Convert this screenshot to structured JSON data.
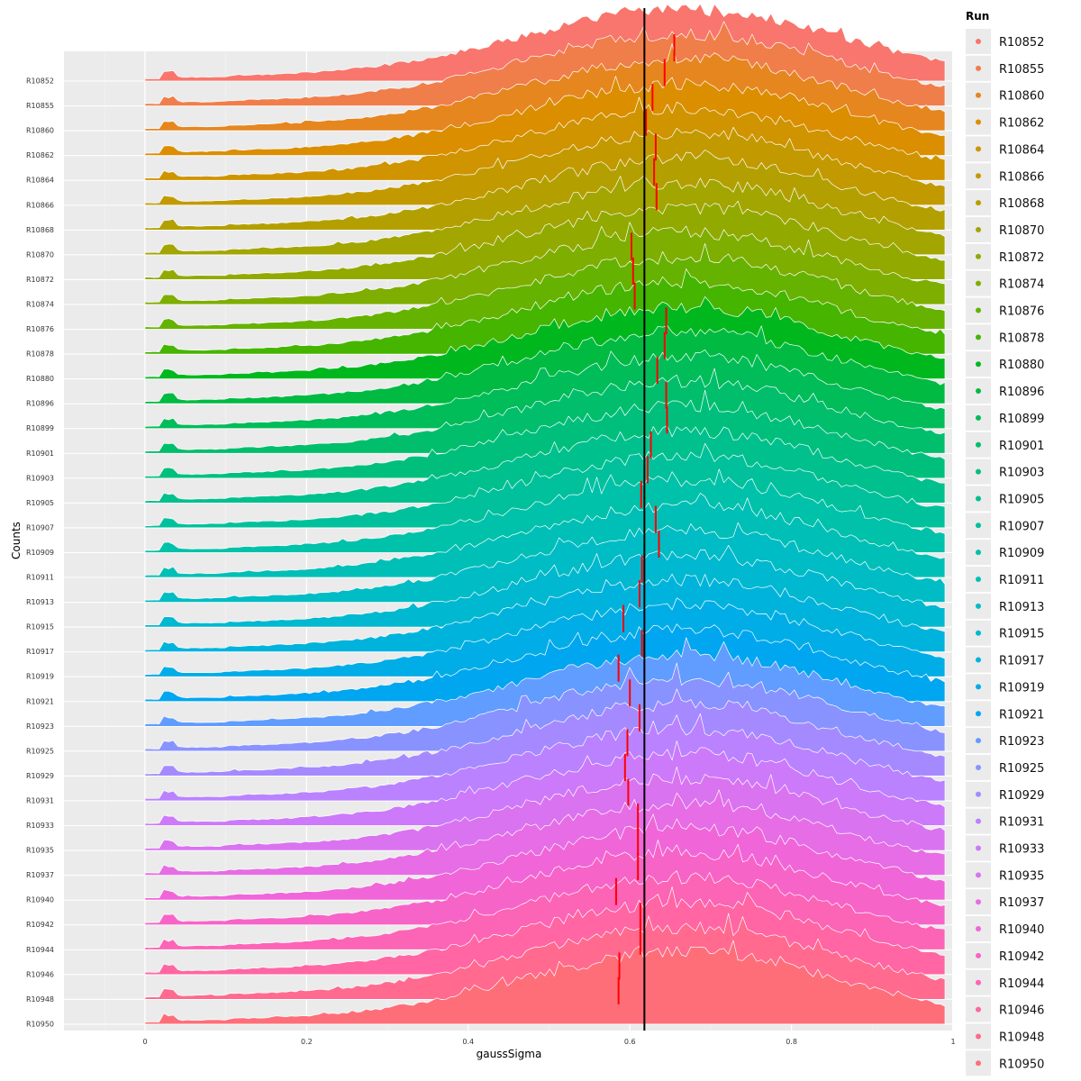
{
  "chart_data": {
    "type": "area",
    "subtype": "ridgeline",
    "title": "",
    "xlabel": "gaussSigma",
    "ylabel": "Counts",
    "xlim": [
      -0.1,
      1.0
    ],
    "x_ticks": [
      "0",
      "0.2",
      "0.4",
      "0.6",
      "0.8",
      "1"
    ],
    "x_tick_values": [
      0,
      0.2,
      0.4,
      0.6,
      0.8,
      1.0
    ],
    "grid": true,
    "reference_line": {
      "x": 0.618,
      "color": "#000000"
    },
    "median_marker_color": "#ff0000",
    "distribution": {
      "x_start": 0.0,
      "x_end": 0.99,
      "mode": 0.67,
      "outlier_spike_x": 0.03
    },
    "legend": {
      "title": "Run",
      "placement": "right"
    },
    "series": [
      {
        "name": "R10852",
        "color": "#F8766D",
        "median": 0.655
      },
      {
        "name": "R10855",
        "color": "#F07E4B",
        "median": 0.643
      },
      {
        "name": "R10860",
        "color": "#E6861F",
        "median": 0.628
      },
      {
        "name": "R10862",
        "color": "#DB8E00",
        "median": 0.62
      },
      {
        "name": "R10864",
        "color": "#CF9400",
        "median": 0.632
      },
      {
        "name": "R10866",
        "color": "#C29A00",
        "median": 0.63
      },
      {
        "name": "R10868",
        "color": "#B3A000",
        "median": 0.633
      },
      {
        "name": "R10870",
        "color": "#A3A500",
        "median": 0.618
      },
      {
        "name": "R10872",
        "color": "#92AA00",
        "median": 0.602
      },
      {
        "name": "R10874",
        "color": "#7EAE00",
        "median": 0.604
      },
      {
        "name": "R10876",
        "color": "#66B200",
        "median": 0.606
      },
      {
        "name": "R10878",
        "color": "#45B500",
        "median": 0.645
      },
      {
        "name": "R10880",
        "color": "#00B81E",
        "median": 0.643
      },
      {
        "name": "R10896",
        "color": "#00BA42",
        "median": 0.634
      },
      {
        "name": "R10899",
        "color": "#00BC59",
        "median": 0.645
      },
      {
        "name": "R10901",
        "color": "#00BE6C",
        "median": 0.646
      },
      {
        "name": "R10903",
        "color": "#00BF7D",
        "median": 0.626
      },
      {
        "name": "R10905",
        "color": "#00C08D",
        "median": 0.622
      },
      {
        "name": "R10907",
        "color": "#00C19B",
        "median": 0.614
      },
      {
        "name": "R10909",
        "color": "#00C1A9",
        "median": 0.632
      },
      {
        "name": "R10911",
        "color": "#00BFB7",
        "median": 0.636
      },
      {
        "name": "R10913",
        "color": "#00BCC4",
        "median": 0.615
      },
      {
        "name": "R10915",
        "color": "#00B8D0",
        "median": 0.612
      },
      {
        "name": "R10917",
        "color": "#00B3DC",
        "median": 0.592
      },
      {
        "name": "R10919",
        "color": "#00ADE7",
        "median": 0.615
      },
      {
        "name": "R10921",
        "color": "#00A6F0",
        "median": 0.586
      },
      {
        "name": "R10923",
        "color": "#619CFF",
        "median": 0.6
      },
      {
        "name": "R10925",
        "color": "#8993FF",
        "median": 0.612
      },
      {
        "name": "R10929",
        "color": "#A58AFF",
        "median": 0.597
      },
      {
        "name": "R10931",
        "color": "#BA82FF",
        "median": 0.594
      },
      {
        "name": "R10933",
        "color": "#CC7AF9",
        "median": 0.598
      },
      {
        "name": "R10935",
        "color": "#DA73F0",
        "median": 0.61
      },
      {
        "name": "R10937",
        "color": "#E66DE5",
        "median": 0.61
      },
      {
        "name": "R10940",
        "color": "#F066D8",
        "median": 0.61
      },
      {
        "name": "R10942",
        "color": "#F764C8",
        "median": 0.583
      },
      {
        "name": "R10944",
        "color": "#FC64B6",
        "median": 0.613
      },
      {
        "name": "R10946",
        "color": "#FF66A3",
        "median": 0.613
      },
      {
        "name": "R10948",
        "color": "#FF6A8E",
        "median": 0.587
      },
      {
        "name": "R10950",
        "color": "#FE6E79",
        "median": 0.586
      }
    ]
  }
}
